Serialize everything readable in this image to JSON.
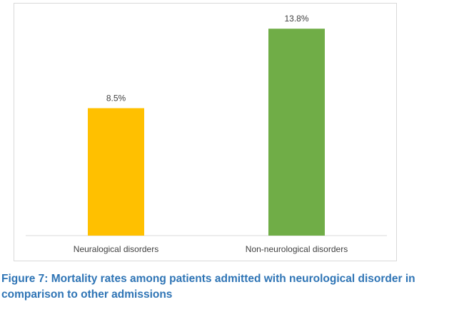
{
  "chart_data": {
    "type": "bar",
    "categories": [
      "Neuralogical disorders",
      "Non-neurological disorders"
    ],
    "values": [
      8.5,
      13.8
    ],
    "value_labels": [
      "8.5%",
      "13.8%"
    ],
    "colors": [
      "#ffc000",
      "#70ad47"
    ],
    "ylim": [
      0,
      15
    ],
    "title": "",
    "xlabel": "",
    "ylabel": "",
    "grid": false,
    "legend": false
  },
  "caption": "Figure 7: Mortality rates among patients admitted with neurological disorder in comparison to other admissions"
}
